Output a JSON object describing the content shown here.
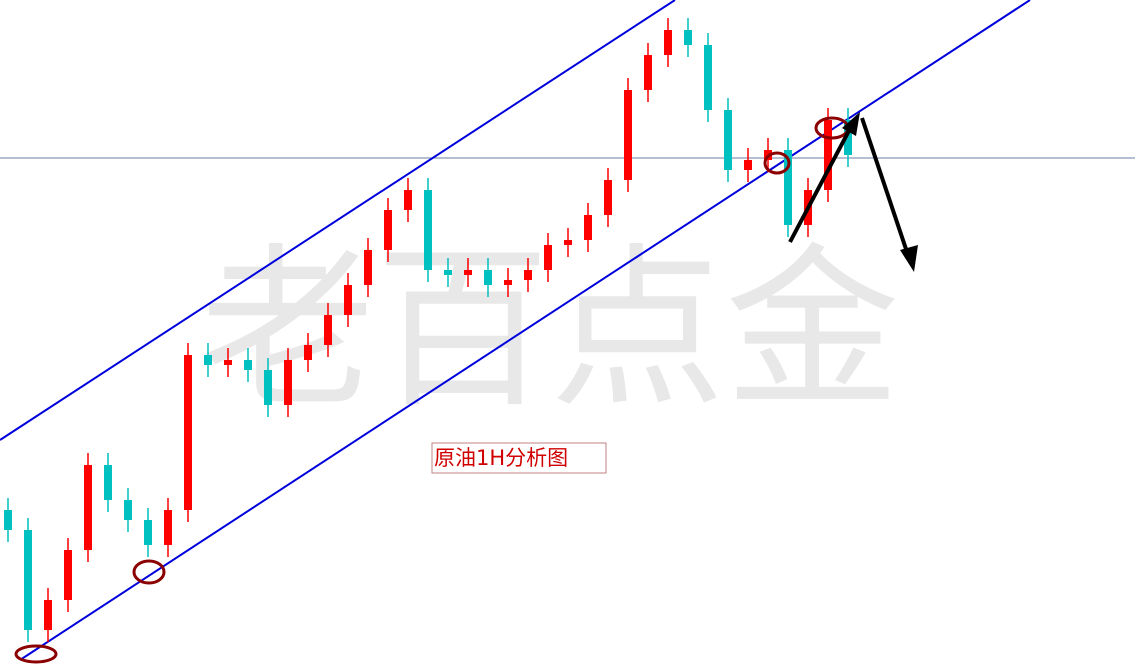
{
  "chart_data": {
    "type": "candlestick",
    "watermark": "老百点金",
    "annotation": "原油1H分析图",
    "up_color": "#ff0000",
    "down_color": "#00c0c0",
    "ylim": [
      0,
      670
    ],
    "open": [
      160,
      140,
      40,
      70,
      120,
      205,
      170,
      150,
      125,
      160,
      315,
      305,
      310,
      300,
      265,
      310,
      325,
      355,
      385,
      420,
      460,
      480,
      400,
      395,
      400,
      385,
      390,
      400,
      425,
      430,
      455,
      490,
      580,
      615,
      640,
      625,
      560,
      500,
      510,
      520,
      445,
      480,
      550
    ],
    "high": [
      172,
      152,
      82,
      132,
      217,
      217,
      182,
      162,
      172,
      327,
      327,
      322,
      322,
      312,
      322,
      337,
      367,
      397,
      432,
      472,
      492,
      492,
      412,
      412,
      412,
      402,
      412,
      437,
      442,
      467,
      502,
      592,
      627,
      652,
      652,
      637,
      572,
      522,
      532,
      532,
      492,
      562,
      562
    ],
    "low": [
      128,
      28,
      28,
      58,
      108,
      158,
      138,
      113,
      113,
      148,
      293,
      293,
      288,
      253,
      253,
      298,
      313,
      343,
      373,
      408,
      448,
      388,
      383,
      383,
      373,
      373,
      378,
      388,
      413,
      418,
      443,
      478,
      568,
      603,
      613,
      548,
      488,
      488,
      498,
      433,
      433,
      468,
      503
    ],
    "close": [
      140,
      40,
      70,
      120,
      205,
      170,
      150,
      125,
      160,
      315,
      305,
      310,
      300,
      265,
      310,
      325,
      355,
      385,
      420,
      460,
      480,
      400,
      395,
      400,
      385,
      390,
      400,
      425,
      430,
      455,
      490,
      580,
      615,
      640,
      625,
      560,
      500,
      510,
      520,
      445,
      480,
      550,
      515
    ]
  }
}
